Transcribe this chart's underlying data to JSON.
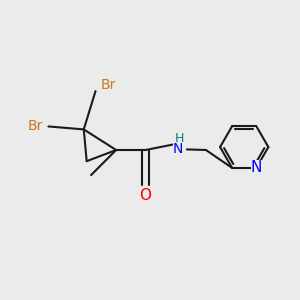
{
  "background_color": "#EBEBEB",
  "bond_color": "#1a1a1a",
  "bond_width": 1.5,
  "atom_colors": {
    "Br": "#CC7722",
    "O": "#FF0000",
    "N_blue": "#0000FF",
    "N_teal": "#008080",
    "H": "#1a1a1a",
    "C": "#1a1a1a"
  },
  "font_size": 10,
  "fig_width": 3.0,
  "fig_height": 3.0
}
